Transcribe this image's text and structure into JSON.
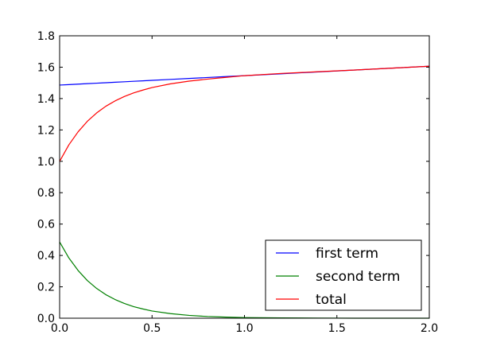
{
  "chart_data": {
    "type": "line",
    "title": "",
    "xlabel": "",
    "ylabel": "",
    "xlim": [
      0.0,
      2.0
    ],
    "ylim": [
      0.0,
      1.8
    ],
    "xticks": [
      "0.0",
      "0.5",
      "1.0",
      "1.5",
      "2.0"
    ],
    "yticks": [
      "0.0",
      "0.2",
      "0.4",
      "0.6",
      "0.8",
      "1.0",
      "1.2",
      "1.4",
      "1.6",
      "1.8"
    ],
    "grid": false,
    "legend_position": "lower-right",
    "x": [
      0.0,
      0.05,
      0.1,
      0.15,
      0.2,
      0.25,
      0.3,
      0.35,
      0.4,
      0.45,
      0.5,
      0.6,
      0.7,
      0.8,
      0.9,
      1.0,
      1.2,
      1.4,
      1.6,
      1.8,
      2.0
    ],
    "series": [
      {
        "name": "first term",
        "color": "#0000ff",
        "values": [
          1.486,
          1.489,
          1.492,
          1.495,
          1.498,
          1.501,
          1.504,
          1.507,
          1.51,
          1.513,
          1.516,
          1.522,
          1.528,
          1.534,
          1.54,
          1.546,
          1.558,
          1.57,
          1.582,
          1.594,
          1.606
        ]
      },
      {
        "name": "second term",
        "color": "#008000",
        "values": [
          0.486,
          0.384,
          0.304,
          0.24,
          0.19,
          0.15,
          0.119,
          0.094,
          0.074,
          0.059,
          0.046,
          0.029,
          0.018,
          0.011,
          0.007,
          0.004,
          0.002,
          0.001,
          0.0,
          0.0,
          0.0
        ]
      },
      {
        "name": "total",
        "color": "#ff0000",
        "values": [
          1.0,
          1.105,
          1.188,
          1.255,
          1.308,
          1.351,
          1.385,
          1.413,
          1.436,
          1.454,
          1.47,
          1.494,
          1.511,
          1.524,
          1.535,
          1.546,
          1.56,
          1.571,
          1.582,
          1.594,
          1.606
        ]
      }
    ]
  }
}
